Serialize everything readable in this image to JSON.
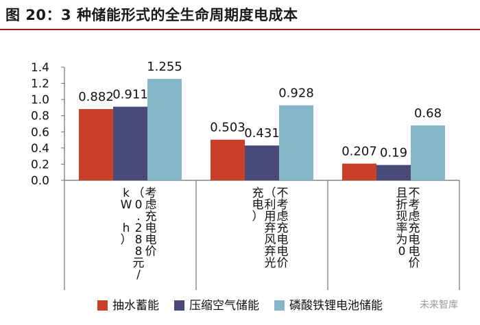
{
  "title": "图 20：3 种储能形式的全生命周期度电成本",
  "colors": {
    "series1": "#c8402a",
    "series2": "#4a4a7a",
    "series3": "#86b7c9",
    "axis": "#6e6e6e",
    "title_rule": "#9b1c1c"
  },
  "watermark": "未来智库",
  "chart_data": {
    "type": "bar",
    "title": "",
    "xlabel": "",
    "ylabel": "",
    "ylim": [
      0,
      1.4
    ],
    "yticks": [
      "0.0",
      "0.2",
      "0.4",
      "0.6",
      "0.8",
      "1.0",
      "1.2",
      "1.4"
    ],
    "grid": false,
    "legend": "bottom",
    "categories": [
      "考虑充电电价（0.288元/kW h）",
      "不考虑充电电价（利用弃风弃光充电）",
      "不考虑充电电价且折现率为0"
    ],
    "category_lines": [
      [
        "考虑充电电价",
        "（0.288元/",
        "kW h）"
      ],
      [
        "不考虑充电电价",
        "（利用弃风弃光",
        "充电）"
      ],
      [
        "不考虑充电电价",
        "且折现率为0"
      ]
    ],
    "series": [
      {
        "name": "抽水蓄能",
        "values": [
          0.882,
          0.503,
          0.207
        ],
        "labels": [
          "0.882",
          "0.503",
          "0.207"
        ]
      },
      {
        "name": "压缩空气储能",
        "values": [
          0.911,
          0.431,
          0.19
        ],
        "labels": [
          "0.911",
          "0.431",
          "0.19"
        ]
      },
      {
        "name": "磷酸铁锂电池储能",
        "values": [
          1.255,
          0.928,
          0.68
        ],
        "labels": [
          "1.255",
          "0.928",
          "0.68"
        ]
      }
    ]
  }
}
